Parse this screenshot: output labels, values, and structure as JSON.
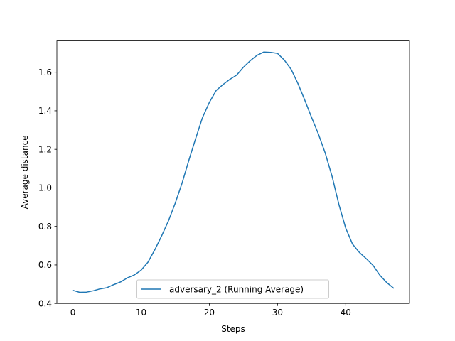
{
  "chart_data": {
    "type": "line",
    "title": "",
    "xlabel": "Steps",
    "ylabel": "Average distance",
    "xlim": [
      -2.35,
      49.35
    ],
    "ylim": [
      0.4,
      1.7625
    ],
    "xticks": [
      0,
      10,
      20,
      30,
      40
    ],
    "xtick_labels": [
      "0",
      "10",
      "20",
      "30",
      "40"
    ],
    "yticks": [
      0.4,
      0.6,
      0.8,
      1.0,
      1.2,
      1.4,
      1.6
    ],
    "ytick_labels": [
      "0.4",
      "0.6",
      "0.8",
      "1.0",
      "1.2",
      "1.4",
      "1.6"
    ],
    "grid": false,
    "legend_position": "lower center",
    "series": [
      {
        "name": "adversary_2 (Running Average)",
        "color": "#1f77b4",
        "x": [
          0,
          1,
          2,
          3,
          4,
          5,
          6,
          7,
          8,
          9,
          10,
          11,
          12,
          13,
          14,
          15,
          16,
          17,
          18,
          19,
          20,
          21,
          22,
          23,
          24,
          25,
          26,
          27,
          28,
          29,
          30,
          31,
          32,
          33,
          34,
          35,
          36,
          37,
          38,
          39,
          40,
          41,
          42,
          43,
          44,
          45,
          46,
          47
        ],
        "y": [
          0.468,
          0.458,
          0.459,
          0.466,
          0.476,
          0.482,
          0.498,
          0.512,
          0.533,
          0.548,
          0.573,
          0.614,
          0.678,
          0.75,
          0.828,
          0.92,
          1.024,
          1.143,
          1.256,
          1.365,
          1.443,
          1.505,
          1.536,
          1.563,
          1.585,
          1.626,
          1.66,
          1.688,
          1.705,
          1.703,
          1.698,
          1.663,
          1.615,
          1.541,
          1.455,
          1.365,
          1.279,
          1.18,
          1.06,
          0.914,
          0.791,
          0.708,
          0.665,
          0.633,
          0.598,
          0.547,
          0.509,
          0.48
        ]
      }
    ]
  }
}
